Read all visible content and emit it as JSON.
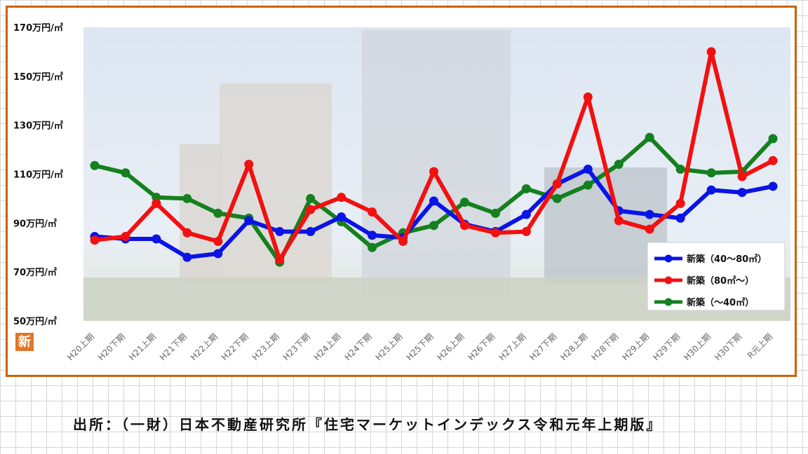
{
  "source_note": "出所：（一財）日本不動産研究所『住宅マーケットインデックス令和元年上期版』",
  "badge": {
    "label": "新",
    "color": "#e0762a"
  },
  "colors": {
    "frame": "#c8620b"
  },
  "chart_data": {
    "type": "line",
    "categories": [
      "H20上期",
      "H20下期",
      "H21上期",
      "H21下期",
      "H22上期",
      "H22下期",
      "H23上期",
      "H23下期",
      "H24上期",
      "H24下期",
      "H25上期",
      "H25下期",
      "H26上期",
      "H26下期",
      "H27上期",
      "H27下期",
      "H28上期",
      "H28下期",
      "H29上期",
      "H29下期",
      "H30上期",
      "H30下期",
      "R元上期"
    ],
    "y_ticks": [
      50,
      70,
      90,
      110,
      130,
      150,
      170
    ],
    "y_tick_suffix": "万円/㎡",
    "ylim": [
      50,
      170
    ],
    "grid": false,
    "legend_position": "bottom-right",
    "series": [
      {
        "name": "新築（40〜80㎡）",
        "color": "#0a14e6",
        "values": [
          84.5,
          83.5,
          83.5,
          76,
          77.5,
          91,
          86.5,
          86.5,
          92.5,
          85,
          84,
          99,
          89.5,
          86.5,
          93.5,
          106,
          112,
          95,
          93.5,
          92,
          103.5,
          102.5,
          105
        ]
      },
      {
        "name": "新築（80㎡〜）",
        "color": "#f21010",
        "values": [
          83,
          84.5,
          98,
          86,
          82.5,
          114,
          75,
          95.5,
          100.5,
          94.5,
          82.5,
          111,
          89,
          86,
          86.5,
          106,
          141.5,
          91,
          87.5,
          98,
          160,
          109,
          115.5
        ]
      },
      {
        "name": "新築（〜40㎡）",
        "color": "#14801e",
        "values": [
          113.5,
          110.5,
          100.5,
          100,
          94,
          92,
          74,
          100,
          90.5,
          80,
          86,
          89,
          98.5,
          94,
          104,
          100,
          105.5,
          114,
          125,
          112,
          110.5,
          111,
          124.5
        ]
      }
    ]
  }
}
